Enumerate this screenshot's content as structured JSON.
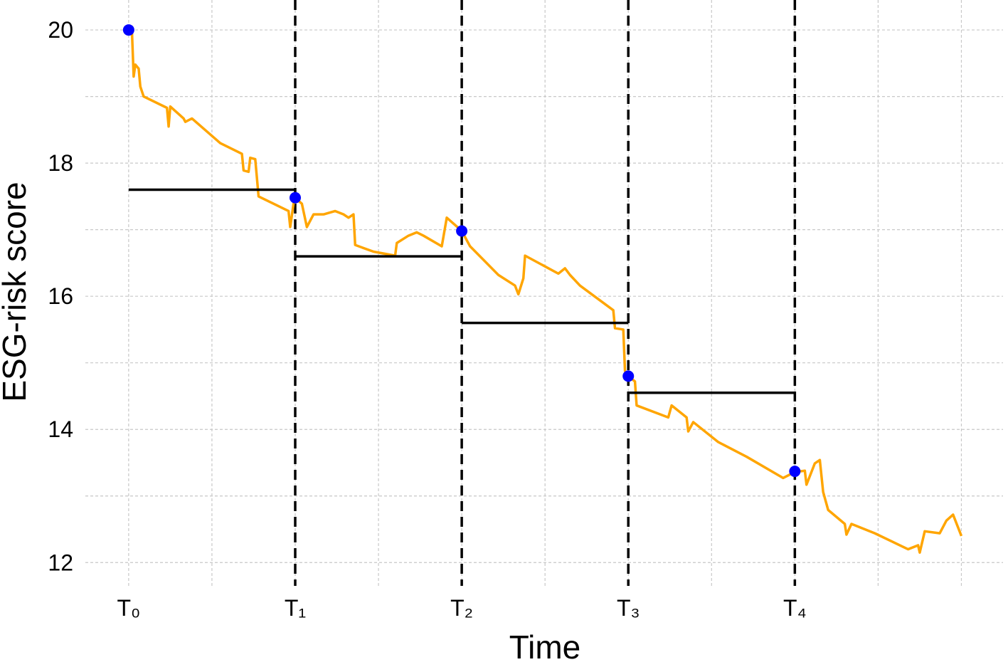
{
  "chart_data": {
    "type": "line",
    "x_label": "Time",
    "y_label": "ESG-risk score",
    "xlim": [
      -0.26,
      5.25
    ],
    "ylim": [
      11.65,
      20.45
    ],
    "xticks": [
      {
        "value": 0,
        "label": "T₀"
      },
      {
        "value": 1,
        "label": "T₁"
      },
      {
        "value": 2,
        "label": "T₂"
      },
      {
        "value": 3,
        "label": "T₃"
      },
      {
        "value": 4,
        "label": "T₄"
      }
    ],
    "yticks": [
      12,
      14,
      16,
      18,
      20
    ],
    "x_gridlines": [
      0.5,
      1.5,
      2.5,
      3.5,
      4.5,
      5
    ],
    "y_gridlines": [
      13,
      15,
      17,
      19
    ],
    "grid": true,
    "series": [
      {
        "color": "#ffa500",
        "x": [
          0,
          0.02,
          0.03,
          0.04,
          0.06,
          0.07,
          0.09,
          0.23,
          0.24,
          0.25,
          0.33,
          0.34,
          0.38,
          0.55,
          0.68,
          0.69,
          0.72,
          0.73,
          0.76,
          0.78,
          0.96,
          0.97,
          0.99,
          1,
          1.04,
          1.07,
          1.11,
          1.17,
          1.24,
          1.29,
          1.32,
          1.35,
          1.36,
          1.47,
          1.6,
          1.61,
          1.68,
          1.73,
          1.77,
          1.88,
          1.91,
          1.96,
          2,
          2.05,
          2.22,
          2.32,
          2.34,
          2.37,
          2.38,
          2.58,
          2.62,
          2.65,
          2.71,
          2.91,
          2.92,
          2.97,
          2.98,
          3,
          3.04,
          3.05,
          3.24,
          3.26,
          3.35,
          3.36,
          3.39,
          3.54,
          3.71,
          3.93,
          4,
          4.06,
          4.07,
          4.12,
          4.15,
          4.17,
          4.2,
          4.3,
          4.31,
          4.34,
          4.48,
          4.68,
          4.74,
          4.75,
          4.78,
          4.87,
          4.91,
          4.95,
          5
        ],
        "values": [
          20,
          19.96,
          19.3,
          19.48,
          19.42,
          19.15,
          19,
          18.83,
          18.55,
          18.85,
          18.67,
          18.62,
          18.67,
          18.3,
          18.14,
          17.89,
          17.87,
          18.08,
          18.06,
          17.5,
          17.28,
          17.04,
          17.39,
          17.48,
          17.39,
          17.04,
          17.23,
          17.23,
          17.28,
          17.23,
          17.18,
          17.23,
          16.77,
          16.67,
          16.61,
          16.8,
          16.91,
          16.96,
          16.91,
          16.75,
          17.18,
          17.07,
          16.98,
          16.75,
          16.32,
          16.16,
          16.03,
          16.27,
          16.61,
          16.34,
          16.42,
          16.32,
          16.16,
          15.79,
          15.52,
          15.5,
          14.88,
          14.8,
          14.72,
          14.36,
          14.18,
          14.36,
          14.18,
          13.97,
          14.11,
          13.81,
          13.59,
          13.27,
          13.36,
          13.38,
          13.17,
          13.49,
          13.54,
          13.06,
          12.79,
          12.58,
          12.42,
          12.58,
          12.44,
          12.2,
          12.26,
          12.15,
          12.47,
          12.44,
          12.63,
          12.72,
          12.4
        ]
      }
    ],
    "markers": {
      "color": "#0000ff",
      "x": [
        0,
        1,
        2,
        3,
        4
      ],
      "values": [
        20,
        17.48,
        16.98,
        14.8,
        13.37
      ]
    },
    "levels": {
      "color": "#000000",
      "x_start": [
        0,
        1,
        2,
        3
      ],
      "x_end": [
        1,
        2,
        3,
        4
      ],
      "values": [
        17.6,
        16.6,
        15.6,
        14.55
      ]
    },
    "vlines": [
      1,
      2,
      3,
      4
    ]
  }
}
